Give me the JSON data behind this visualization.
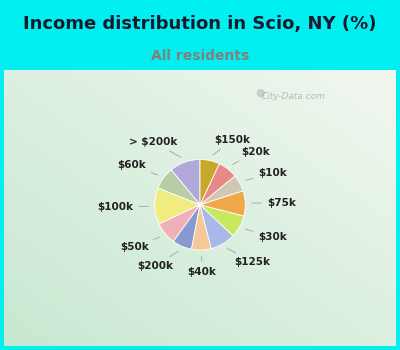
{
  "title": "Income distribution in Scio, NY (%)",
  "subtitle": "All residents",
  "bg_cyan": "#00EFEF",
  "bg_inner": "#d8eed8",
  "watermark": "City-Data.com",
  "slices": [
    {
      "label": "> $200k",
      "value": 11,
      "color": "#b0a8d8"
    },
    {
      "label": "$60k",
      "value": 8,
      "color": "#b8cca8"
    },
    {
      "label": "$100k",
      "value": 13,
      "color": "#f0ec80"
    },
    {
      "label": "$50k",
      "value": 8,
      "color": "#f0b0b8"
    },
    {
      "label": "$200k",
      "value": 7,
      "color": "#8898d0"
    },
    {
      "label": "$40k",
      "value": 7,
      "color": "#f5c898"
    },
    {
      "label": "$125k",
      "value": 9,
      "color": "#a8b8e8"
    },
    {
      "label": "$30k",
      "value": 8,
      "color": "#c8e860"
    },
    {
      "label": "$75k",
      "value": 9,
      "color": "#f0a848"
    },
    {
      "label": "$10k",
      "value": 6,
      "color": "#d0c8b0"
    },
    {
      "label": "$20k",
      "value": 7,
      "color": "#e88888"
    },
    {
      "label": "$150k",
      "value": 7,
      "color": "#c8a828"
    }
  ],
  "start_angle": 90,
  "label_fontsize": 7.5,
  "title_fontsize": 13,
  "subtitle_fontsize": 10,
  "title_color": "#1a1a2e",
  "subtitle_color": "#808080"
}
